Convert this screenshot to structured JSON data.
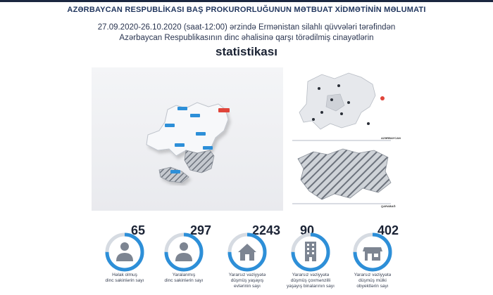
{
  "header": {
    "title": "AZƏRBAYCAN RESPUBLİKASI BAŞ PROKURORLUĞUNUN MƏTBUAT XİDMƏTİNİN MƏLUMATI"
  },
  "subtitle": {
    "line1": "27.09.2020-26.10.2020 (saat-12:00) ərzində Ermənistan silahlı qüvvələri tərəfindən",
    "line2": "Azərbaycan Respublikasının dinc əhalisinə qarşı törədilmiş cinayətlərin"
  },
  "heading": "statistikası",
  "side_map": {
    "label_top": "AZƏRBAYCAN",
    "label_bottom": "QARABAĞ"
  },
  "stats": [
    {
      "value": "65",
      "label_lines": [
        "Həlak olmuş",
        "dinc sakinlərin sayı"
      ],
      "icon": "person-icon",
      "ring_fraction": 0.75
    },
    {
      "value": "297",
      "label_lines": [
        "Yaralanmış",
        "dinc sakinlərin sayı"
      ],
      "icon": "person-icon",
      "ring_fraction": 0.75
    },
    {
      "value": "2243",
      "label_lines": [
        "Yararsız vəziyyətə",
        "düşmüş yaşayış",
        "evlərinin sayı"
      ],
      "icon": "house-icon",
      "ring_fraction": 0.75
    },
    {
      "value": "90",
      "label_lines": [
        "Yararsız vəziyyətə",
        "düşmüş çoxmənzilli",
        "yaşayış binalarının sayı"
      ],
      "icon": "building-icon",
      "ring_fraction": 0.75
    },
    {
      "value": "402",
      "label_lines": [
        "Yararsız vəziyyətə",
        "düşmüş mülki",
        "obyektlərin sayı"
      ],
      "icon": "shop-icon",
      "ring_fraction": 0.75
    }
  ],
  "colors": {
    "ring_blue": "#2d8fd8",
    "ring_grey": "#d6dbe2",
    "icon_grey": "#7d8592",
    "title_navy": "#22375f"
  }
}
